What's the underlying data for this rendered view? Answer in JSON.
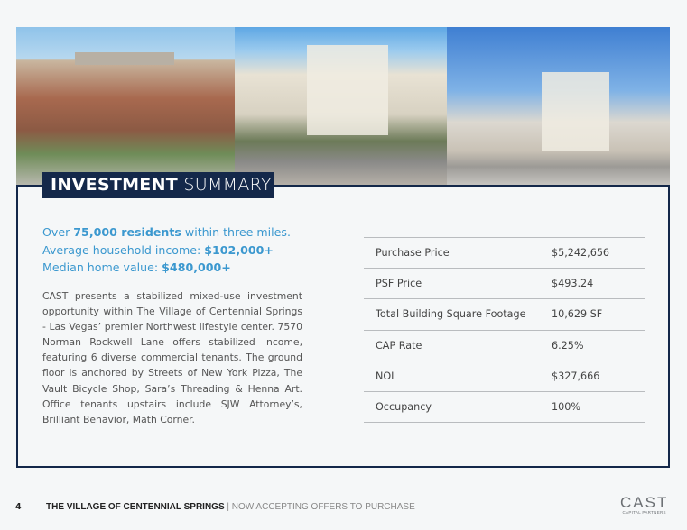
{
  "header": {
    "title_bold": "INVESTMENT",
    "title_light": "SUMMARY"
  },
  "tagline": {
    "line1_pre": "Over ",
    "line1_bold": "75,000 residents",
    "line1_post": " within three miles.",
    "line2_pre": "Average household income: ",
    "line2_bold": "$102,000+",
    "line3_pre": "Median home value: ",
    "line3_bold": "$480,000+"
  },
  "description": "CAST presents a stabilized mixed-use investment opportunity within The Village of Centennial Springs - Las Vegas’ premier Northwest lifestyle center. 7570 Norman Rockwell Lane offers stabilized income, featuring 6 diverse commercial tenants. The ground floor is anchored by Streets of New York Pizza, The Vault Bicycle Shop, Sara’s Threading & Henna Art. Office tenants upstairs include SJW Attorney’s, Brilliant Behavior, Math Corner.",
  "summary_table": [
    {
      "label": "Purchase Price",
      "value": "$5,242,656"
    },
    {
      "label": "PSF Price",
      "value": "$493.24"
    },
    {
      "label": "Total Building Square Footage",
      "value": "10,629 SF"
    },
    {
      "label": "CAP Rate",
      "value": "6.25%"
    },
    {
      "label": "NOI",
      "value": "$327,666"
    },
    {
      "label": "Occupancy",
      "value": "100%"
    }
  ],
  "footer": {
    "page_number": "4",
    "title_bold": "THE VILLAGE OF CENTENNIAL SPRINGS",
    "separator": " | ",
    "subtitle": "NOW ACCEPTING OFFERS TO PURCHASE"
  },
  "logo": {
    "name": "CAST",
    "subtitle": "CAPITAL PARTNERS"
  },
  "colors": {
    "navy": "#14284a",
    "accent_blue": "#3b98cf"
  }
}
